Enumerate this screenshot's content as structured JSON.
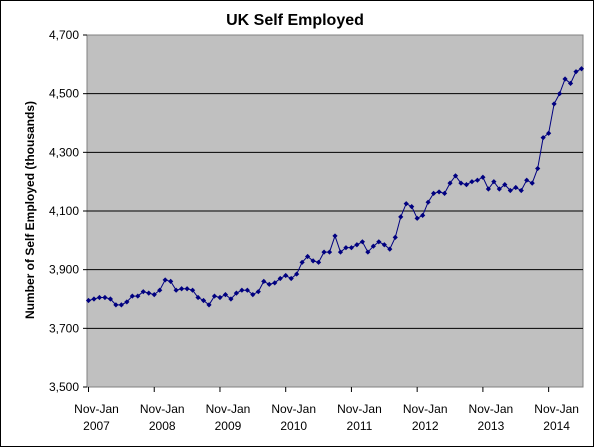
{
  "chart_data": {
    "type": "line",
    "title": "UK Self Employed",
    "xlabel": "",
    "ylabel": "Number of Self Employed (thousands)",
    "ylim": [
      3500,
      4700
    ],
    "yticks": [
      3500,
      3700,
      3900,
      4100,
      4300,
      4500,
      4700
    ],
    "ytick_labels": [
      "3,500",
      "3,700",
      "3,900",
      "4,100",
      "4,300",
      "4,500",
      "4,700"
    ],
    "xtick_labels": [
      {
        "line1": "Nov-Jan",
        "line2": "2007",
        "index": 0
      },
      {
        "line1": "Nov-Jan",
        "line2": "2008",
        "index": 12
      },
      {
        "line1": "Nov-Jan",
        "line2": "2009",
        "index": 24
      },
      {
        "line1": "Nov-Jan",
        "line2": "2010",
        "index": 36
      },
      {
        "line1": "Nov-Jan",
        "line2": "2011",
        "index": 48
      },
      {
        "line1": "Nov-Jan",
        "line2": "2012",
        "index": 60
      },
      {
        "line1": "Nov-Jan",
        "line2": "2013",
        "index": 72
      },
      {
        "line1": "Nov-Jan",
        "line2": "2014",
        "index": 84
      }
    ],
    "grid": true,
    "plot_background": "#c0c0c0",
    "line_color": "#000080",
    "series": [
      {
        "values": [
          3795,
          3800,
          3805,
          3805,
          3800,
          3780,
          3780,
          3790,
          3810,
          3810,
          3825,
          3820,
          3815,
          3830,
          3865,
          3860,
          3830,
          3835,
          3835,
          3830,
          3805,
          3795,
          3780,
          3810,
          3805,
          3815,
          3800,
          3820,
          3830,
          3830,
          3815,
          3825,
          3860,
          3850,
          3855,
          3870,
          3880,
          3870,
          3885,
          3925,
          3945,
          3930,
          3925,
          3960,
          3960,
          4015,
          3960,
          3975,
          3975,
          3985,
          3995,
          3960,
          3980,
          3995,
          3985,
          3970,
          4010,
          4080,
          4125,
          4115,
          4075,
          4085,
          4130,
          4160,
          4165,
          4160,
          4195,
          4220,
          4195,
          4190,
          4200,
          4205,
          4215,
          4175,
          4200,
          4175,
          4190,
          4170,
          4180,
          4170,
          4205,
          4195,
          4245,
          4350,
          4365,
          4465,
          4500,
          4550,
          4535,
          4575,
          4585
        ]
      }
    ]
  }
}
